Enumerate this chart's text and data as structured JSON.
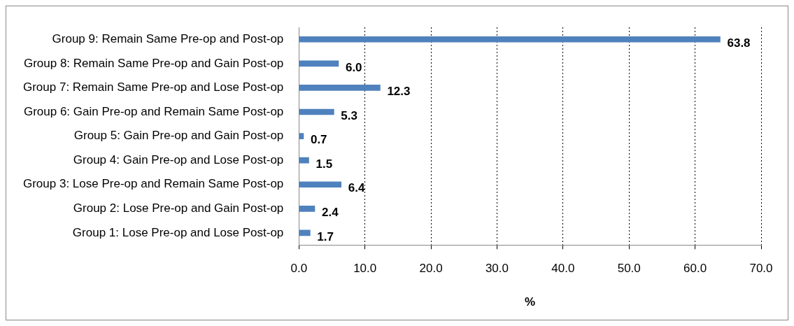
{
  "chart_data": {
    "type": "bar",
    "orientation": "horizontal",
    "categories": [
      "Group 9: Remain Same Pre-op and Post-op",
      "Group 8: Remain Same Pre-op and Gain Post-op",
      "Group 7: Remain Same Pre-op and Lose Post-op",
      "Group 6: Gain Pre-op and Remain Same Post-op",
      "Group 5: Gain Pre-op and Gain Post-op",
      "Group 4: Gain Pre-op and Lose Post-op",
      "Group 3: Lose Pre-op and Remain Same Post-op",
      "Group 2: Lose Pre-op and Gain Post-op",
      "Group 1: Lose Pre-op and Lose Post-op"
    ],
    "values": [
      63.8,
      6.0,
      12.3,
      5.3,
      0.7,
      1.5,
      6.4,
      2.4,
      1.7
    ],
    "value_labels": [
      "63.8",
      "6.0",
      "12.3",
      "5.3",
      "0.7",
      "1.5",
      "6.4",
      "2.4",
      "1.7"
    ],
    "color": "#4f81bd",
    "xlabel": "%",
    "xlim": [
      0,
      70
    ],
    "xticks": [
      {
        "value": 0,
        "label": "0.0"
      },
      {
        "value": 10,
        "label": "10.0"
      },
      {
        "value": 20,
        "label": "20.0"
      },
      {
        "value": 30,
        "label": "30.0"
      },
      {
        "value": 40,
        "label": "40.0"
      },
      {
        "value": 50,
        "label": "50.0"
      },
      {
        "value": 60,
        "label": "60.0"
      },
      {
        "value": 70,
        "label": "70.0"
      }
    ],
    "grid": "x",
    "legend": false
  }
}
